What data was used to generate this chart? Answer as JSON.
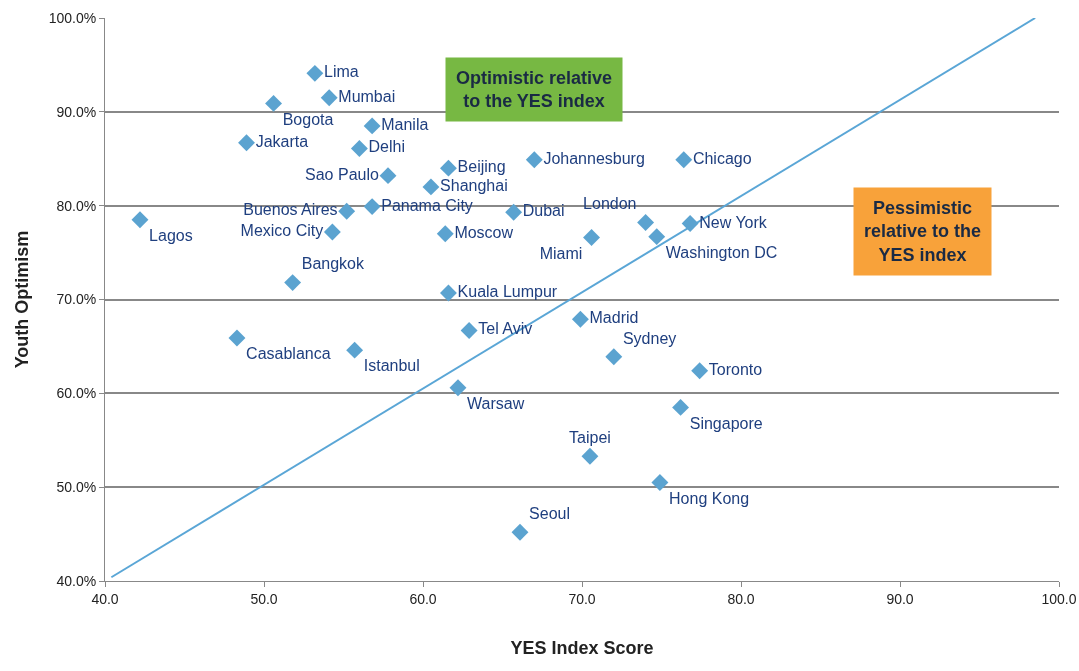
{
  "chart_data": {
    "type": "scatter",
    "xlabel": "YES Index Score",
    "ylabel": "Youth Optimism",
    "xlim": [
      40,
      100
    ],
    "xticks": [
      {
        "value": 40,
        "label": "40.0"
      },
      {
        "value": 50,
        "label": "50.0"
      },
      {
        "value": 60,
        "label": "60.0"
      },
      {
        "value": 70,
        "label": "70.0"
      },
      {
        "value": 80,
        "label": "80.0"
      },
      {
        "value": 90,
        "label": "90.0"
      },
      {
        "value": 100,
        "label": "100.0"
      }
    ],
    "ylim": [
      40,
      100
    ],
    "yticks": [
      {
        "value": 40,
        "label": "40.0%"
      },
      {
        "value": 50,
        "label": "50.0%"
      },
      {
        "value": 60,
        "label": "60.0%"
      },
      {
        "value": 70,
        "label": "70.0%"
      },
      {
        "value": 80,
        "label": "80.0%"
      },
      {
        "value": 90,
        "label": "90.0%"
      },
      {
        "value": 100,
        "label": "100.0%"
      }
    ],
    "grid": "y",
    "legend": false,
    "marker": "diamond",
    "annotations": [
      "Optimistic relative to the YES index",
      "Pessimistic relative to the YES index"
    ],
    "series": [
      {
        "type": "line",
        "marker": "none",
        "color": "#5aa6d6",
        "x": [
          40.4,
          98.5
        ],
        "values": [
          40.4,
          100
        ]
      },
      {
        "name": "Lima",
        "color": "#5ba3d0",
        "x": [
          53.2
        ],
        "values": [
          94.1
        ]
      },
      {
        "name": "Mumbai",
        "color": "#5ba3d0",
        "x": [
          54.1
        ],
        "values": [
          91.5
        ]
      },
      {
        "name": "Bogota",
        "color": "#5ba3d0",
        "x": [
          50.6
        ],
        "values": [
          90.9
        ]
      },
      {
        "name": "Manila",
        "color": "#5ba3d0",
        "x": [
          56.8
        ],
        "values": [
          88.5
        ]
      },
      {
        "name": "Jakarta",
        "color": "#5ba3d0",
        "x": [
          48.9
        ],
        "values": [
          86.7
        ]
      },
      {
        "name": "Delhi",
        "color": "#5ba3d0",
        "x": [
          56.0
        ],
        "values": [
          86.1
        ]
      },
      {
        "name": "Beijing",
        "color": "#5ba3d0",
        "x": [
          61.6
        ],
        "values": [
          84.0
        ]
      },
      {
        "name": "Johannesburg",
        "color": "#5ba3d0",
        "x": [
          67.0
        ],
        "values": [
          84.9
        ]
      },
      {
        "name": "Chicago",
        "color": "#5ba3d0",
        "x": [
          76.4
        ],
        "values": [
          84.9
        ]
      },
      {
        "name": "Sao Paulo",
        "color": "#5ba3d0",
        "x": [
          57.8
        ],
        "values": [
          83.2
        ]
      },
      {
        "name": "Shanghai",
        "color": "#5ba3d0",
        "x": [
          60.5
        ],
        "values": [
          82.0
        ]
      },
      {
        "name": "Lagos",
        "color": "#5ba3d0",
        "x": [
          42.2
        ],
        "values": [
          78.5
        ]
      },
      {
        "name": "Buenos Aires",
        "color": "#5ba3d0",
        "x": [
          55.2
        ],
        "values": [
          79.4
        ]
      },
      {
        "name": "Panama City",
        "color": "#5ba3d0",
        "x": [
          56.8
        ],
        "values": [
          79.9
        ]
      },
      {
        "name": "Dubai",
        "color": "#5ba3d0",
        "x": [
          65.7
        ],
        "values": [
          79.3
        ]
      },
      {
        "name": "London",
        "color": "#5ba3d0",
        "x": [
          74.0
        ],
        "values": [
          78.2
        ]
      },
      {
        "name": "New York",
        "color": "#5ba3d0",
        "x": [
          76.8
        ],
        "values": [
          78.1
        ]
      },
      {
        "name": "Mexico City",
        "color": "#5ba3d0",
        "x": [
          54.3
        ],
        "values": [
          77.2
        ]
      },
      {
        "name": "Moscow",
        "color": "#5ba3d0",
        "x": [
          61.4
        ],
        "values": [
          77.0
        ]
      },
      {
        "name": "Miami",
        "color": "#5ba3d0",
        "x": [
          70.6
        ],
        "values": [
          76.6
        ]
      },
      {
        "name": "Washington DC",
        "color": "#5ba3d0",
        "x": [
          74.7
        ],
        "values": [
          76.7
        ]
      },
      {
        "name": "Bangkok",
        "color": "#5ba3d0",
        "x": [
          51.8
        ],
        "values": [
          71.8
        ]
      },
      {
        "name": "Kuala Lumpur",
        "color": "#5ba3d0",
        "x": [
          61.6
        ],
        "values": [
          70.7
        ]
      },
      {
        "name": "Madrid",
        "color": "#5ba3d0",
        "x": [
          69.9
        ],
        "values": [
          67.9
        ]
      },
      {
        "name": "Tel Aviv",
        "color": "#5ba3d0",
        "x": [
          62.9
        ],
        "values": [
          66.7
        ]
      },
      {
        "name": "Casablanca",
        "color": "#5ba3d0",
        "x": [
          48.3
        ],
        "values": [
          65.9
        ]
      },
      {
        "name": "Istanbul",
        "color": "#5ba3d0",
        "x": [
          55.7
        ],
        "values": [
          64.6
        ]
      },
      {
        "name": "Sydney",
        "color": "#5ba3d0",
        "x": [
          72.0
        ],
        "values": [
          63.9
        ]
      },
      {
        "name": "Toronto",
        "color": "#5ba3d0",
        "x": [
          77.4
        ],
        "values": [
          62.4
        ]
      },
      {
        "name": "Warsaw",
        "color": "#5ba3d0",
        "x": [
          62.2
        ],
        "values": [
          60.6
        ]
      },
      {
        "name": "Singapore",
        "color": "#5ba3d0",
        "x": [
          76.2
        ],
        "values": [
          58.5
        ]
      },
      {
        "name": "Taipei",
        "color": "#5ba3d0",
        "x": [
          70.5
        ],
        "values": [
          53.3
        ]
      },
      {
        "name": "Hong Kong",
        "color": "#5ba3d0",
        "x": [
          74.9
        ],
        "values": [
          50.5
        ]
      },
      {
        "name": "Seoul",
        "color": "#5ba3d0",
        "x": [
          66.1
        ],
        "values": [
          45.2
        ]
      }
    ]
  }
}
